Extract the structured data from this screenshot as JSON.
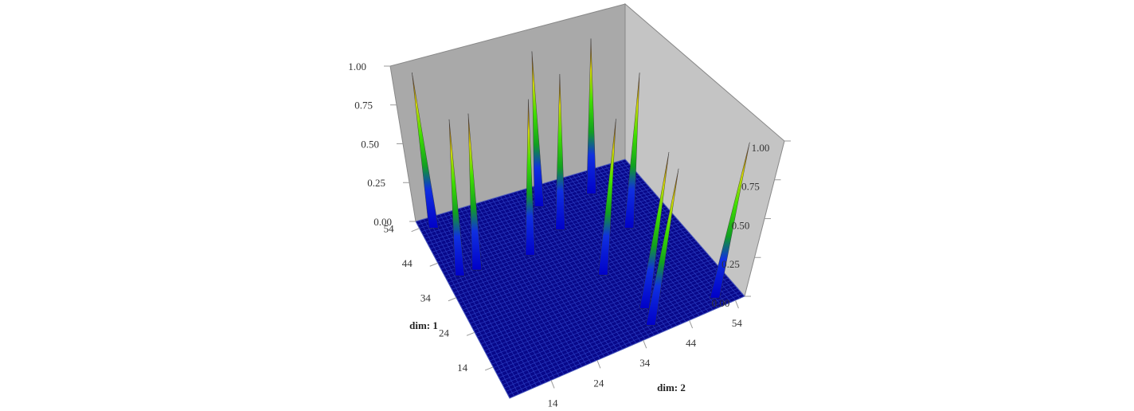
{
  "chart_data": {
    "type": "surface3d",
    "xlabel": "dim: 1",
    "ylabel": "dim: 2",
    "x": [
      53,
      39,
      39,
      38,
      50,
      42,
      26,
      36,
      13,
      8,
      8,
      49
    ],
    "y": [
      8,
      8,
      12,
      24,
      32,
      33,
      35,
      46,
      38,
      37,
      51,
      44
    ],
    "values": [
      1,
      1,
      1,
      1,
      1,
      1,
      1,
      1,
      1,
      1,
      1,
      1
    ],
    "xlim": [
      5,
      56
    ],
    "ylim": [
      5,
      56
    ],
    "zlim": [
      0,
      1
    ],
    "xticks": [
      14,
      24,
      34,
      44,
      54
    ],
    "yticks": [
      14,
      24,
      34,
      44,
      54
    ],
    "zticks": [
      {
        "value": 0,
        "label": "0.00"
      },
      {
        "value": 0.25,
        "label": "0.25"
      },
      {
        "value": 0.5,
        "label": "0.50"
      },
      {
        "value": 0.75,
        "label": "0.75"
      },
      {
        "value": 1,
        "label": "1.00"
      }
    ],
    "grid": true
  }
}
